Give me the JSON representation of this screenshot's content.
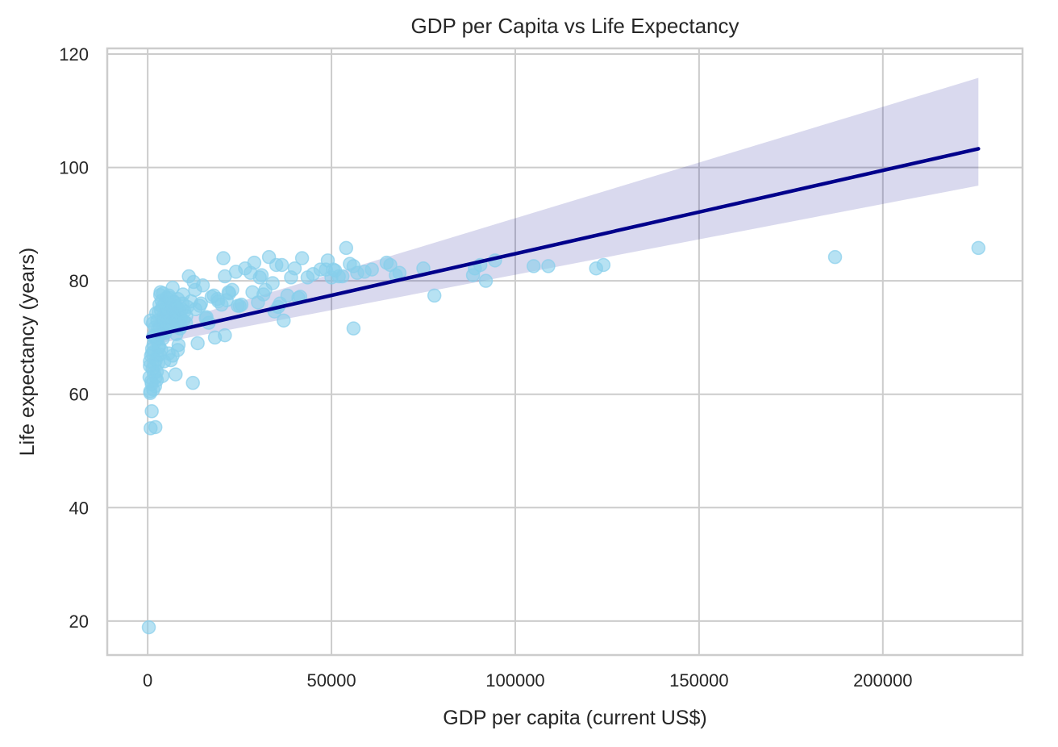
{
  "chart_data": {
    "type": "scatter",
    "title": "GDP per Capita vs Life Expectancy",
    "xlabel": "GDP per capita (current US$)",
    "ylabel": "Life expectancy (years)",
    "xlim": [
      -11000,
      238000
    ],
    "ylim": [
      14,
      121
    ],
    "x_ticks": [
      0,
      50000,
      100000,
      150000,
      200000
    ],
    "y_ticks": [
      20,
      40,
      60,
      80,
      100,
      120
    ],
    "grid": true,
    "point_color": "#87ceeb",
    "line_color": "#00008b",
    "band_color": "#00008b",
    "regression": {
      "x": [
        0,
        226000
      ],
      "y": [
        70.1,
        103.3
      ],
      "ci_lower": [
        68.6,
        96.8
      ],
      "ci_upper": [
        71.4,
        115.8
      ]
    },
    "points": {
      "x": [
        300,
        500,
        600,
        700,
        800,
        900,
        1000,
        1100,
        1200,
        1300,
        1400,
        1500,
        1600,
        1700,
        1800,
        1900,
        2000,
        2100,
        2200,
        2300,
        2400,
        2500,
        2600,
        2700,
        2800,
        2900,
        3000,
        3100,
        3200,
        3300,
        3400,
        3500,
        3600,
        3700,
        3800,
        3900,
        4000,
        4100,
        4200,
        4300,
        4400,
        4500,
        4600,
        4700,
        4800,
        4900,
        5000,
        5100,
        5200,
        5300,
        5400,
        5500,
        5600,
        5700,
        5800,
        5900,
        6000,
        6200,
        6400,
        6600,
        6800,
        7000,
        7200,
        7400,
        7600,
        7800,
        8000,
        8200,
        8400,
        8600,
        8800,
        9000,
        9300,
        9600,
        10000,
        10400,
        10800,
        11200,
        11800,
        12300,
        12900,
        13600,
        14200,
        15000,
        15800,
        16600,
        17400,
        18300,
        19200,
        20100,
        20600,
        21000,
        21500,
        22200,
        23000,
        24000,
        25000,
        26500,
        28000,
        29000,
        30000,
        31000,
        32000,
        33000,
        34000,
        35000,
        36000,
        37000,
        38000,
        39000,
        40000,
        41000,
        42000,
        43500,
        45000,
        47000,
        49000,
        50000,
        51000,
        52000,
        54000,
        55000,
        56000,
        57000,
        59000,
        61000,
        65000,
        66000,
        67500,
        68500,
        75000,
        78000,
        88500,
        89000,
        90500,
        92000,
        94500,
        105000,
        109000,
        122000,
        124000,
        187000,
        226000,
        800,
        1200,
        2000,
        3500,
        4500,
        5800,
        6800,
        7600,
        8200,
        9500,
        12500,
        14500,
        19000,
        21000,
        25500,
        28500,
        31500,
        34500,
        36500,
        41500,
        50500,
        56000,
        600,
        1500,
        2500,
        3000,
        4000,
        5000,
        6000,
        7000,
        8000,
        9000,
        10500,
        13000,
        16000,
        18000,
        22000,
        24500,
        30500,
        35500,
        48500,
        53000,
        700,
        1100,
        1600,
        2200,
        2700,
        3300,
        4200,
        5300,
        6300,
        7300,
        8300,
        9700
      ],
      "y": [
        18.9,
        63.0,
        65.8,
        60.5,
        54.0,
        66.8,
        62.3,
        57.0,
        68.0,
        64.5,
        72.5,
        60.8,
        67.5,
        63.8,
        70.2,
        65.2,
        71.8,
        54.2,
        66.0,
        74.3,
        69.5,
        62.5,
        73.0,
        66.8,
        71.5,
        65.5,
        74.5,
        68.5,
        75.8,
        72.0,
        77.5,
        70.5,
        74.8,
        67.8,
        76.5,
        73.2,
        75.5,
        69.8,
        77.8,
        72.8,
        74.0,
        71.2,
        76.0,
        73.8,
        70.8,
        75.2,
        72.5,
        77.0,
        74.2,
        76.8,
        71.8,
        73.5,
        75.8,
        67.2,
        74.6,
        72.2,
        76.2,
        73.6,
        75.4,
        72.6,
        78.8,
        74.4,
        76.3,
        73.0,
        75.6,
        70.6,
        72.4,
        76.8,
        68.7,
        74.8,
        71.6,
        73.4,
        75.0,
        77.6,
        74.6,
        72.6,
        75.4,
        80.8,
        76.4,
        62.0,
        78.4,
        69.0,
        75.6,
        79.2,
        73.4,
        72.6,
        77.2,
        70.0,
        76.4,
        75.8,
        84.0,
        70.4,
        76.6,
        77.8,
        78.4,
        81.6,
        75.6,
        82.2,
        81.4,
        83.2,
        76.2,
        81.0,
        78.4,
        84.2,
        79.6,
        82.8,
        76.0,
        73.0,
        77.4,
        80.6,
        82.2,
        77.0,
        84.0,
        80.6,
        81.2,
        82.0,
        83.6,
        80.6,
        81.8,
        80.8,
        85.8,
        83.0,
        71.6,
        81.4,
        81.6,
        82.0,
        83.2,
        82.8,
        81.0,
        81.4,
        82.2,
        77.4,
        81.0,
        82.2,
        82.8,
        80.0,
        83.6,
        82.6,
        82.6,
        82.2,
        82.8,
        84.2,
        85.8,
        73.0,
        67.2,
        61.4,
        78.0,
        65.8,
        77.4,
        66.8,
        63.5,
        67.8,
        76.0,
        79.8,
        76.0,
        76.8,
        80.8,
        75.8,
        78.0,
        77.6,
        74.6,
        82.8,
        77.2,
        82.0,
        82.6,
        65.0,
        70.2,
        64.0,
        68.2,
        63.2,
        75.2,
        77.0,
        74.0,
        75.4,
        72.0,
        73.8,
        75.0,
        73.6,
        77.4,
        78.0,
        75.6,
        80.6,
        75.4,
        82.0,
        80.8,
        60.2,
        61.8,
        68.8,
        63.0,
        69.8,
        67.0,
        72.6,
        74.6,
        66.0,
        76.2,
        72.8,
        73.0
      ]
    }
  }
}
